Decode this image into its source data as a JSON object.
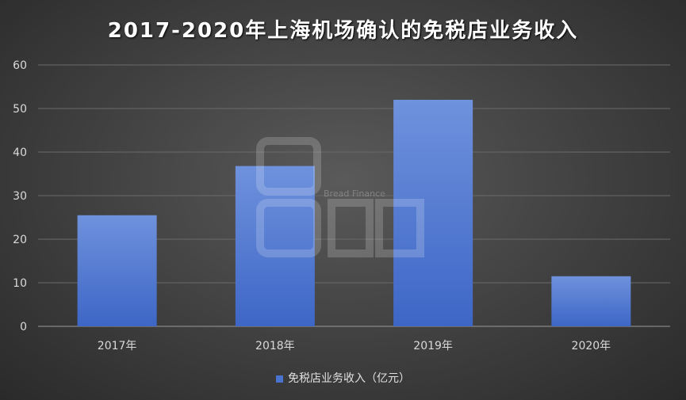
{
  "chart_data": {
    "type": "bar",
    "title": "2017-2020年上海机场确认的免税店业务收入",
    "categories": [
      "2017年",
      "2018年",
      "2019年",
      "2020年"
    ],
    "series": [
      {
        "name": "免税店业务收入（亿元）",
        "values": [
          25.5,
          36.8,
          52.0,
          11.5
        ]
      }
    ],
    "ylim": [
      0,
      60
    ],
    "yticks": [
      0,
      10,
      20,
      30,
      40,
      50,
      60
    ],
    "grid": true,
    "legend": "bottom",
    "colors": {
      "bar_top": "#6f92dd",
      "bar_bottom": "#3d66c6",
      "grid": "#6a6a6a",
      "axis": "#9a9a9a"
    }
  },
  "watermark": {
    "text": "Bread Finance",
    "logo": "面包财经"
  }
}
